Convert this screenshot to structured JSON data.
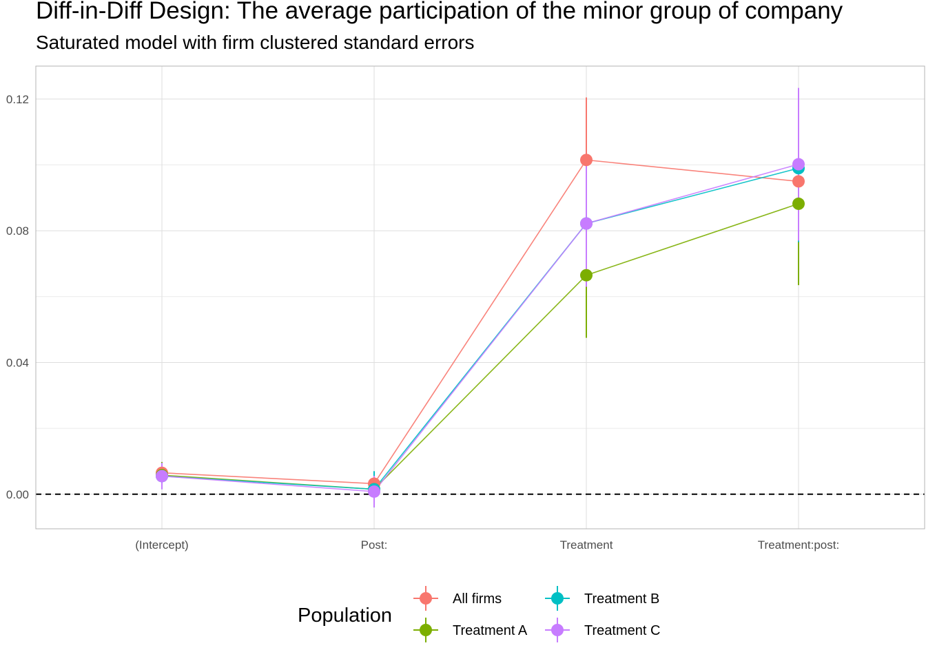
{
  "title": "Diff-in-Diff Design: The average participation of the minor group of company",
  "subtitle": "Saturated model with firm clustered standard errors",
  "chart_data": {
    "type": "line",
    "title": "Diff-in-Diff Design: The average participation of the minor group of company",
    "subtitle": "Saturated model with firm clustered standard errors",
    "xlabel": "",
    "ylabel": "",
    "categories": [
      "(Intercept)",
      "Post:",
      "Treatment",
      "Treatment:post:"
    ],
    "ylim": [
      -0.0105,
      0.13
    ],
    "yticks": [
      0.0,
      0.04,
      0.08,
      0.12
    ],
    "ytick_labels": [
      "0.00",
      "0.04",
      "0.08",
      "0.12"
    ],
    "reference_line": {
      "y": 0,
      "style": "dashed"
    },
    "grid": true,
    "legend": {
      "title": "Population",
      "position": "bottom"
    },
    "series": [
      {
        "name": "All firms",
        "color": "#F8766D",
        "values": [
          0.0065,
          0.0032,
          0.1015,
          0.095
        ],
        "lower": [
          0.0035,
          0.0,
          0.082,
          0.0805
        ],
        "upper": [
          0.0095,
          0.0065,
          0.1205,
          0.1095
        ]
      },
      {
        "name": "Treatment A",
        "color": "#7CAE00",
        "values": [
          0.0058,
          0.0015,
          0.0665,
          0.0882
        ],
        "lower": [
          0.0018,
          -0.0025,
          0.0475,
          0.0635
        ],
        "upper": [
          0.0098,
          0.0055,
          0.0855,
          0.1129
        ]
      },
      {
        "name": "Treatment B",
        "color": "#00BFC4",
        "values": [
          0.0055,
          0.0015,
          0.0822,
          0.099
        ],
        "lower": [
          0.0015,
          -0.004,
          0.0635,
          0.0765
        ],
        "upper": [
          0.0095,
          0.007,
          0.1009,
          0.1215
        ]
      },
      {
        "name": "Treatment C",
        "color": "#C77CFF",
        "values": [
          0.0055,
          0.0008,
          0.0822,
          0.1002
        ],
        "lower": [
          0.0015,
          -0.004,
          0.063,
          0.077
        ],
        "upper": [
          0.0095,
          0.0056,
          0.1014,
          0.1234
        ]
      }
    ]
  }
}
